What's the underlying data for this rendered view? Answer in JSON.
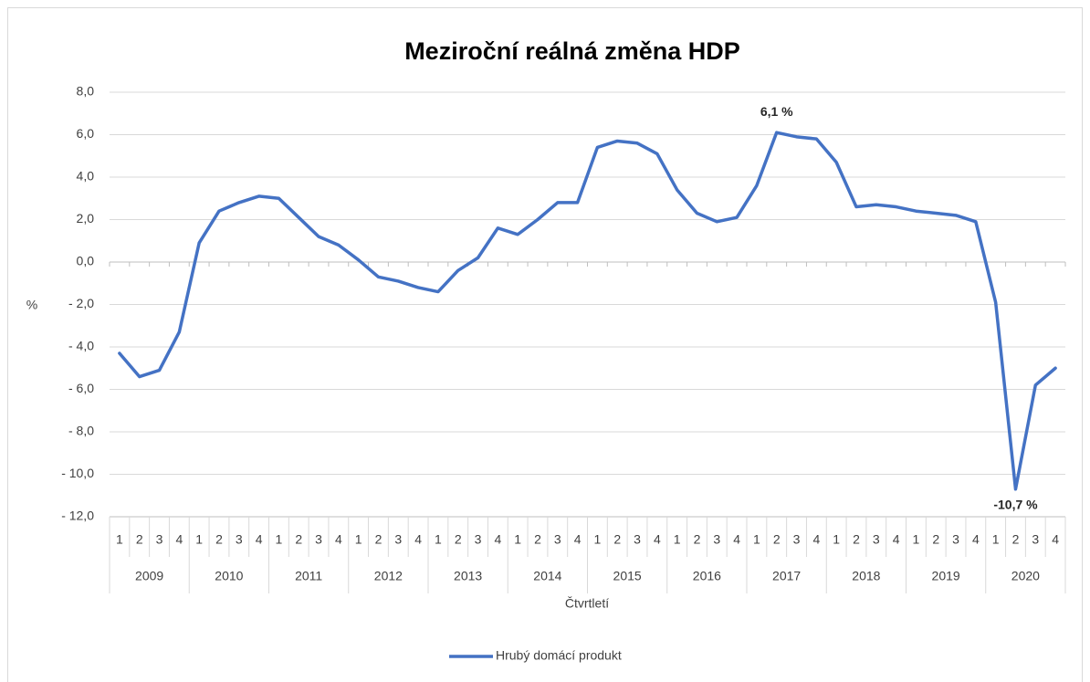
{
  "chart_data": {
    "type": "line",
    "title": "Meziroční reálná změna HDP",
    "y_label": "%",
    "x_label": "Čtvrtletí",
    "categories": [
      "1",
      "2",
      "3",
      "4",
      "1",
      "2",
      "3",
      "4",
      "1",
      "2",
      "3",
      "4",
      "1",
      "2",
      "3",
      "4",
      "1",
      "2",
      "3",
      "4",
      "1",
      "2",
      "3",
      "4",
      "1",
      "2",
      "3",
      "4",
      "1",
      "2",
      "3",
      "4",
      "1",
      "2",
      "3",
      "4",
      "1",
      "2",
      "3",
      "4",
      "1",
      "2",
      "3",
      "4",
      "1",
      "2",
      "3",
      "4"
    ],
    "category_groups": [
      "2009",
      "2010",
      "2011",
      "2012",
      "2013",
      "2014",
      "2015",
      "2016",
      "2017",
      "2018",
      "2019",
      "2020"
    ],
    "series": [
      {
        "name": "Hrubý domácí produkt",
        "color": "#4472c4",
        "values": [
          -4.3,
          -5.4,
          -5.1,
          -3.3,
          0.9,
          2.4,
          2.8,
          3.1,
          3.0,
          2.1,
          1.2,
          0.8,
          0.1,
          -0.7,
          -0.9,
          -1.2,
          -1.4,
          -0.4,
          0.2,
          1.6,
          1.3,
          2.0,
          2.8,
          2.8,
          5.4,
          5.7,
          5.6,
          5.1,
          3.4,
          2.3,
          1.9,
          2.1,
          3.6,
          6.1,
          5.9,
          5.8,
          4.7,
          2.6,
          2.7,
          2.6,
          2.4,
          2.3,
          2.2,
          1.9,
          -1.9,
          -10.7,
          -5.8,
          -5.0
        ],
        "value_labels": [
          null,
          null,
          null,
          null,
          null,
          null,
          null,
          null,
          null,
          null,
          null,
          null,
          null,
          null,
          null,
          null,
          null,
          null,
          null,
          null,
          null,
          null,
          null,
          null,
          null,
          null,
          null,
          null,
          null,
          null,
          null,
          null,
          null,
          "6,1 %",
          null,
          null,
          null,
          null,
          null,
          null,
          null,
          null,
          null,
          null,
          null,
          "-10,7 %",
          null,
          null
        ]
      }
    ],
    "ylim": [
      -12,
      8
    ],
    "yticks": [
      {
        "value": -12,
        "label": "- 12,0"
      },
      {
        "value": -10,
        "label": "- 10,0"
      },
      {
        "value": -8,
        "label": "- 8,0"
      },
      {
        "value": -6,
        "label": "- 6,0"
      },
      {
        "value": -4,
        "label": "- 4,0"
      },
      {
        "value": -2,
        "label": "- 2,0"
      },
      {
        "value": 0,
        "label": "0,0"
      },
      {
        "value": 2,
        "label": "2,0"
      },
      {
        "value": 4,
        "label": "4,0"
      },
      {
        "value": 6,
        "label": "6,0"
      },
      {
        "value": 8,
        "label": "8,0"
      }
    ],
    "grid": true,
    "legend": "bottom"
  }
}
